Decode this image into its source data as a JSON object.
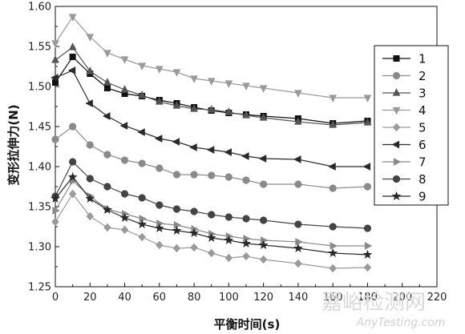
{
  "chart_data": {
    "type": "line",
    "xlabel": "平衡时间(s)",
    "ylabel": "变形拉伸力(N)",
    "xlim": [
      0,
      220
    ],
    "ylim": [
      1.25,
      1.6
    ],
    "xticks": [
      0,
      20,
      40,
      60,
      80,
      100,
      120,
      140,
      160,
      180,
      200,
      220
    ],
    "yticks": [
      "1.25",
      "1.30",
      "1.35",
      "1.40",
      "1.45",
      "1.50",
      "1.55",
      "1.60"
    ],
    "grid": false,
    "legend_position": "right",
    "x": [
      0,
      10,
      20,
      30,
      40,
      50,
      60,
      70,
      80,
      90,
      100,
      110,
      120,
      140,
      160,
      180
    ],
    "series": [
      {
        "name": "1",
        "marker": "square",
        "values": [
          1.505,
          1.537,
          1.516,
          1.498,
          1.491,
          1.488,
          1.483,
          1.479,
          1.474,
          1.47,
          1.467,
          1.465,
          1.463,
          1.46,
          1.454,
          1.457
        ]
      },
      {
        "name": "2",
        "marker": "circle",
        "values": [
          1.434,
          1.45,
          1.427,
          1.415,
          1.408,
          1.404,
          1.398,
          1.39,
          1.39,
          1.389,
          1.387,
          1.383,
          1.378,
          1.378,
          1.373,
          1.375
        ]
      },
      {
        "name": "3",
        "marker": "triangle-up",
        "values": [
          1.533,
          1.549,
          1.519,
          1.505,
          1.496,
          1.489,
          1.481,
          1.476,
          1.472,
          1.471,
          1.468,
          1.464,
          1.461,
          1.456,
          1.452,
          1.455
        ]
      },
      {
        "name": "4",
        "marker": "triangle-down",
        "values": [
          1.554,
          1.587,
          1.562,
          1.542,
          1.534,
          1.526,
          1.522,
          1.518,
          1.51,
          1.507,
          1.504,
          1.501,
          1.498,
          1.492,
          1.486,
          1.486
        ]
      },
      {
        "name": "5",
        "marker": "diamond",
        "values": [
          1.331,
          1.366,
          1.338,
          1.324,
          1.321,
          1.312,
          1.302,
          1.298,
          1.299,
          1.292,
          1.286,
          1.288,
          1.284,
          1.279,
          1.273,
          1.274
        ]
      },
      {
        "name": "6",
        "marker": "triangle-left",
        "values": [
          1.511,
          1.52,
          1.479,
          1.463,
          1.451,
          1.443,
          1.435,
          1.431,
          1.424,
          1.421,
          1.418,
          1.413,
          1.41,
          1.409,
          1.4,
          1.4
        ]
      },
      {
        "name": "7",
        "marker": "triangle-right",
        "values": [
          1.345,
          1.382,
          1.363,
          1.347,
          1.341,
          1.335,
          1.329,
          1.327,
          1.322,
          1.316,
          1.313,
          1.31,
          1.308,
          1.306,
          1.301,
          1.301
        ]
      },
      {
        "name": "8",
        "marker": "circle",
        "values": [
          1.363,
          1.406,
          1.385,
          1.375,
          1.366,
          1.361,
          1.352,
          1.347,
          1.344,
          1.34,
          1.337,
          1.335,
          1.333,
          1.328,
          1.325,
          1.323
        ]
      },
      {
        "name": "9",
        "marker": "star",
        "values": [
          1.36,
          1.387,
          1.36,
          1.346,
          1.336,
          1.328,
          1.323,
          1.32,
          1.317,
          1.311,
          1.308,
          1.304,
          1.302,
          1.298,
          1.292,
          1.29
        ]
      }
    ]
  },
  "watermark": {
    "text_cn": "嘉峪检测网",
    "text_en": "AnyTesting.com"
  }
}
